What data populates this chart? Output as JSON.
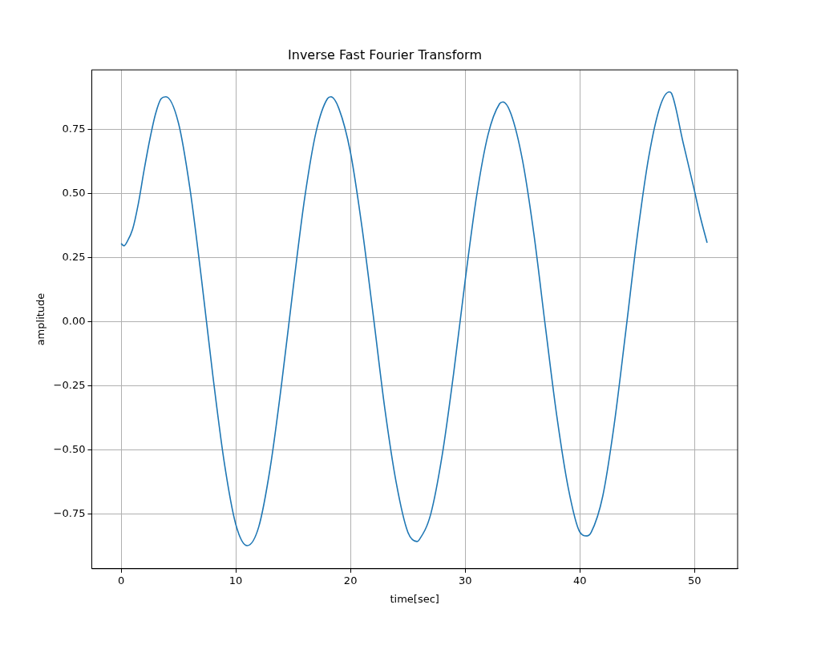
{
  "chart_data": {
    "type": "line",
    "title": "Inverse Fast Fourier Transform",
    "xlabel": "time[sec]",
    "ylabel": "amplitude",
    "x": [
      0,
      0.25,
      0.5,
      1,
      1.5,
      2,
      2.5,
      3,
      3.5,
      3.9,
      5,
      6,
      7,
      8,
      9,
      10,
      11,
      12,
      13,
      14,
      15,
      16,
      17,
      18,
      18.3,
      19,
      20,
      21,
      22,
      23,
      24,
      25,
      25.8,
      26,
      27,
      28,
      29,
      30,
      31,
      32,
      33,
      33.3,
      34,
      35,
      36,
      37,
      38,
      39,
      40,
      40.6,
      41,
      42,
      43,
      44,
      45,
      46,
      47,
      47.8,
      48,
      49,
      50,
      50.5,
      51.1
    ],
    "series": [
      {
        "color": "#1f77b4",
        "values": [
          0.305,
          0.296,
          0.31,
          0.36,
          0.46,
          0.59,
          0.71,
          0.81,
          0.87,
          0.877,
          0.775,
          0.52,
          0.17,
          -0.21,
          -0.55,
          -0.79,
          -0.873,
          -0.8,
          -0.57,
          -0.24,
          0.13,
          0.48,
          0.74,
          0.87,
          0.877,
          0.83,
          0.66,
          0.37,
          0.02,
          -0.34,
          -0.63,
          -0.82,
          -0.857,
          -0.85,
          -0.75,
          -0.52,
          -0.2,
          0.16,
          0.49,
          0.73,
          0.85,
          0.857,
          0.81,
          0.63,
          0.34,
          -0.02,
          -0.37,
          -0.65,
          -0.82,
          -0.835,
          -0.82,
          -0.68,
          -0.4,
          -0.04,
          0.33,
          0.64,
          0.84,
          0.896,
          0.89,
          0.7,
          0.51,
          0.41,
          0.308
        ]
      }
    ],
    "xlim": [
      -2.56,
      53.76
    ],
    "xticks": [
      0,
      10,
      20,
      30,
      40,
      50
    ],
    "ylim": [
      -0.963,
      0.982
    ],
    "yticks": [
      {
        "value": -0.75,
        "label": "−0.75"
      },
      {
        "value": -0.5,
        "label": "−0.50"
      },
      {
        "value": -0.25,
        "label": "−0.25"
      },
      {
        "value": 0,
        "label": "0.00"
      },
      {
        "value": 0.25,
        "label": "0.25"
      },
      {
        "value": 0.5,
        "label": "0.50"
      },
      {
        "value": 0.75,
        "label": "0.75"
      }
    ],
    "grid": true,
    "marker": "none",
    "line_style": "solid"
  }
}
